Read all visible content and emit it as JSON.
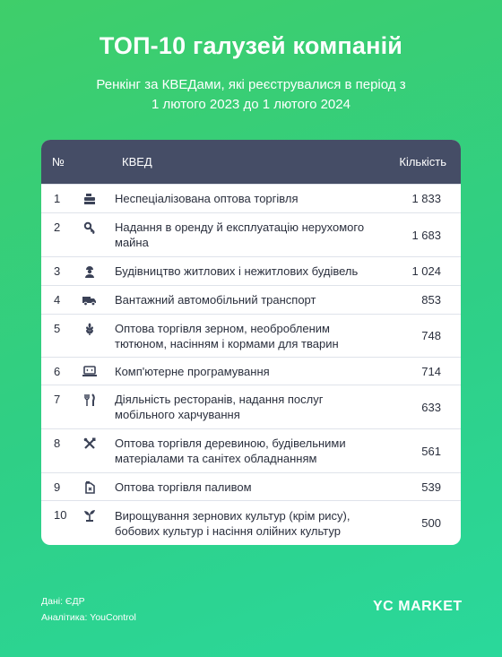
{
  "header": {
    "title": "ТОП-10 галузей компаній",
    "subtitle_line1": "Ренкінг за КВЕДами, які реєструвалися в період з",
    "subtitle_line2": "1 лютого 2023 до 1 лютого 2024"
  },
  "table": {
    "col_no": "№",
    "col_kved": "КВЕД",
    "col_count": "Кількість",
    "rows": [
      {
        "no": "1",
        "name": "Неспеціалізована оптова торгівля",
        "count": "1 833",
        "icon": "cash-register-icon"
      },
      {
        "no": "2",
        "name": "Надання в оренду й експлуатацію нерухомого майна",
        "count": "1 683",
        "icon": "key-icon"
      },
      {
        "no": "3",
        "name": "Будівництво житлових і нежитлових будівель",
        "count": "1 024",
        "icon": "builder-icon"
      },
      {
        "no": "4",
        "name": "Вантажний автомобільний транспорт",
        "count": "853",
        "icon": "truck-icon"
      },
      {
        "no": "5",
        "name": "Оптова торгівля зерном, необробленим тютюном, насінням і кормами для тварин",
        "count": "748",
        "icon": "wheat-icon"
      },
      {
        "no": "6",
        "name": "Комп'ютерне програмування",
        "count": "714",
        "icon": "laptop-icon"
      },
      {
        "no": "7",
        "name": "Діяльність ресторанів, надання послуг мобільного харчування",
        "count": "633",
        "icon": "fork-knife-icon"
      },
      {
        "no": "8",
        "name": "Оптова торгівля деревиною, будівельними матеріалами та санітех обладнанням",
        "count": "561",
        "icon": "tools-icon"
      },
      {
        "no": "9",
        "name": "Оптова торгівля паливом",
        "count": "539",
        "icon": "fuel-canister-icon"
      },
      {
        "no": "10",
        "name": "Вирощування зернових культур (крім рису), бобових культур і насіння олійних культур",
        "count": "500",
        "icon": "sprout-icon"
      }
    ]
  },
  "footer": {
    "source": "Дані: ЄДР",
    "analytics": "Аналітика: YouControl",
    "logo_yc": "YC",
    "logo_market": "MARKET"
  },
  "colors": {
    "header_bg": "#454d66",
    "icon": "#3b4257",
    "bg_start": "#3fce6a",
    "bg_end": "#2ad89b"
  }
}
